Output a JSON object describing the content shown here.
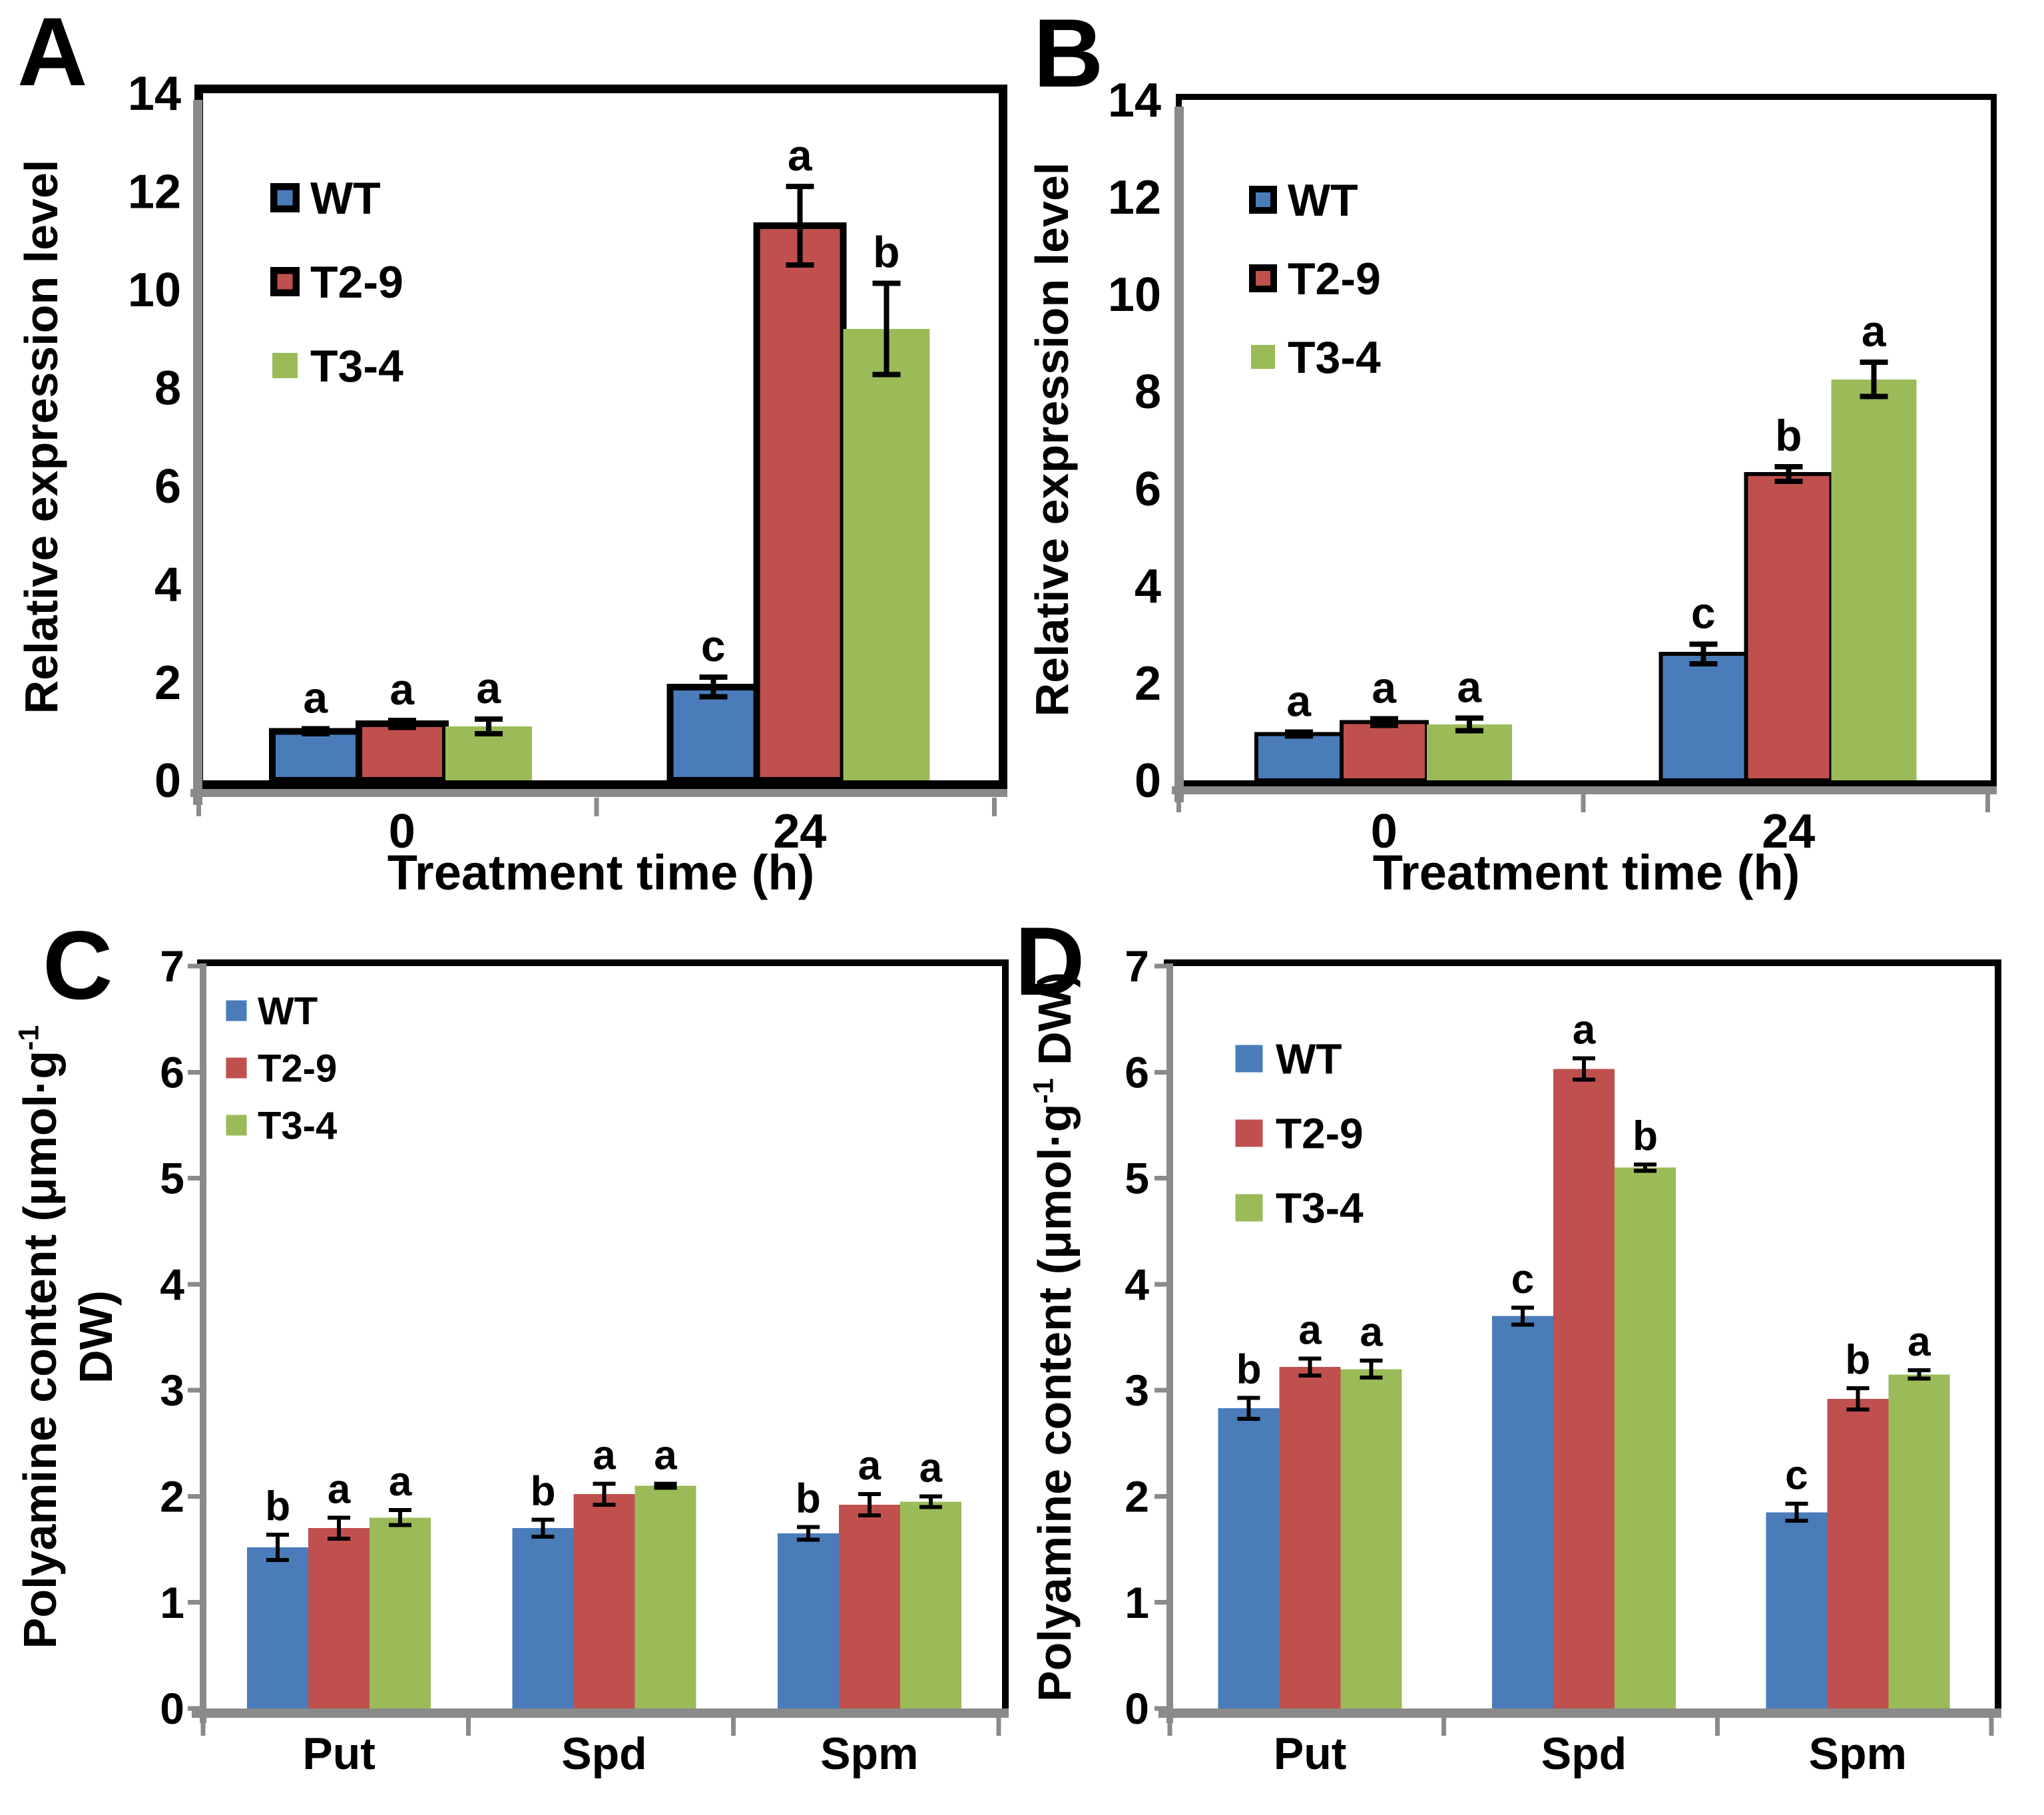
{
  "figure": {
    "description": "Four-panel bar figure: gene relative expression (A, B) and polyamine content (C, D) for wild type and two transgenic lines",
    "panel_letters": [
      "A",
      "B",
      "C",
      "D"
    ]
  },
  "colors": {
    "WT": "#4a7cba",
    "T2-9": "#c0504d",
    "T3-4": "#9bbb59",
    "axis_gray": "#8a8a8a",
    "outline_black": "#000000"
  },
  "chart_data": [
    {
      "panel_label": "A",
      "type": "bar",
      "title": "",
      "ylabel": "Relative expression level",
      "xlabel": "Treatment time (h)",
      "categories": [
        "0",
        "24"
      ],
      "ylim": [
        0,
        14
      ],
      "ytick_step": 2,
      "grid": false,
      "legend_position": "upper-left",
      "legend": [
        "WT",
        "T2-9",
        "T3-4"
      ],
      "series": [
        {
          "name": "WT",
          "values": [
            1.0,
            1.9
          ],
          "errors": [
            0.05,
            0.2
          ],
          "sig_letters": [
            "a",
            "c"
          ]
        },
        {
          "name": "T2-9",
          "values": [
            1.15,
            11.3
          ],
          "errors": [
            0.07,
            0.8
          ],
          "sig_letters": [
            "a",
            "a"
          ]
        },
        {
          "name": "T3-4",
          "values": [
            1.1,
            9.2
          ],
          "errors": [
            0.15,
            0.93
          ],
          "sig_letters": [
            "a",
            "b"
          ]
        }
      ]
    },
    {
      "panel_label": "B",
      "type": "bar",
      "title": "",
      "ylabel": "Relative expression level",
      "xlabel": "Treatment time (h)",
      "categories": [
        "0",
        "24"
      ],
      "ylim": [
        0,
        14
      ],
      "ytick_step": 2,
      "grid": false,
      "legend_position": "upper-left",
      "legend": [
        "WT",
        "T2-9",
        "T3-4"
      ],
      "series": [
        {
          "name": "WT",
          "values": [
            0.95,
            2.6
          ],
          "errors": [
            0.04,
            0.2
          ],
          "sig_letters": [
            "a",
            "c"
          ]
        },
        {
          "name": "T2-9",
          "values": [
            1.2,
            6.3
          ],
          "errors": [
            0.07,
            0.15
          ],
          "sig_letters": [
            "a",
            "b"
          ]
        },
        {
          "name": "T3-4",
          "values": [
            1.15,
            8.25
          ],
          "errors": [
            0.13,
            0.35
          ],
          "sig_letters": [
            "a",
            "a"
          ]
        }
      ]
    },
    {
      "panel_label": "C",
      "type": "bar",
      "title": "",
      "ylabel": "Polyamine content (μmol·g^{-1}\nDW)",
      "xlabel": "",
      "categories": [
        "Put",
        "Spd",
        "Spm"
      ],
      "ylim": [
        0,
        7
      ],
      "ytick_step": 1,
      "grid": false,
      "legend_position": "upper-left",
      "legend": [
        "WT",
        "T2-9",
        "T3-4"
      ],
      "series": [
        {
          "name": "WT",
          "values": [
            1.52,
            1.7,
            1.65
          ],
          "errors": [
            0.12,
            0.08,
            0.06
          ],
          "sig_letters": [
            "b",
            "b",
            "b"
          ]
        },
        {
          "name": "T2-9",
          "values": [
            1.7,
            2.02,
            1.92
          ],
          "errors": [
            0.1,
            0.1,
            0.1
          ],
          "sig_letters": [
            "a",
            "a",
            "a"
          ]
        },
        {
          "name": "T3-4",
          "values": [
            1.8,
            2.1,
            1.95
          ],
          "errors": [
            0.07,
            0.02,
            0.05
          ],
          "sig_letters": [
            "a",
            "a",
            "a"
          ]
        }
      ]
    },
    {
      "panel_label": "D",
      "type": "bar",
      "title": "",
      "ylabel": "Polyamine content (μmol·g^{-1} DW)",
      "xlabel": "",
      "categories": [
        "Put",
        "Spd",
        "Spm"
      ],
      "ylim": [
        0,
        7
      ],
      "ytick_step": 1,
      "grid": false,
      "legend_position": "upper-left",
      "legend": [
        "WT",
        "T2-9",
        "T3-4"
      ],
      "series": [
        {
          "name": "WT",
          "values": [
            2.83,
            3.7,
            1.85
          ],
          "errors": [
            0.1,
            0.08,
            0.08
          ],
          "sig_letters": [
            "b",
            "c",
            "c"
          ]
        },
        {
          "name": "T2-9",
          "values": [
            3.22,
            6.03,
            2.92
          ],
          "errors": [
            0.08,
            0.1,
            0.1
          ],
          "sig_letters": [
            "a",
            "a",
            "b"
          ]
        },
        {
          "name": "T3-4",
          "values": [
            3.2,
            5.1,
            3.15
          ],
          "errors": [
            0.08,
            0.03,
            0.04
          ],
          "sig_letters": [
            "a",
            "b",
            "a"
          ]
        }
      ]
    }
  ]
}
